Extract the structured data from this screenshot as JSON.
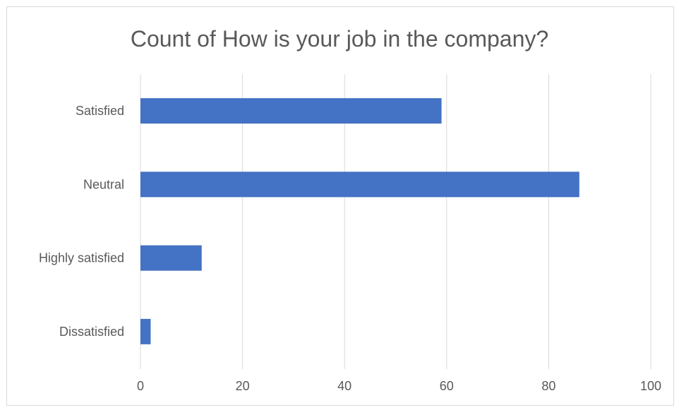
{
  "chart_data": {
    "type": "bar",
    "orientation": "horizontal",
    "title": "Count of How is your job in the company?",
    "categories": [
      "Satisfied",
      "Neutral",
      "Highly satisfied",
      "Dissatisfied"
    ],
    "values": [
      59,
      86,
      12,
      2
    ],
    "xlim": [
      0,
      100
    ],
    "xticks": [
      0,
      20,
      40,
      60,
      80,
      100
    ],
    "grid": true,
    "legend": "none",
    "bar_color": "#4472c4"
  }
}
